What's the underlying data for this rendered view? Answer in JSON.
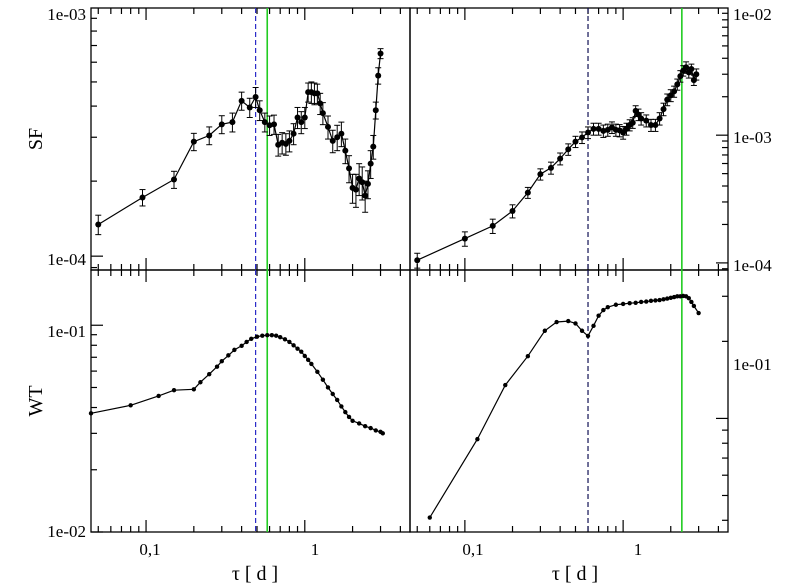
{
  "colors": {
    "data": "#000000",
    "vline_blue": "#2a2ac8",
    "vline_green": "#22cc22",
    "vline_dashed": "#111155"
  },
  "chart_data": [
    {
      "id": "sf-left",
      "type": "scatter",
      "log_x": true,
      "log_y": true,
      "xlim": [
        0.045,
        4.6
      ],
      "ylim": [
        8.8e-05,
        0.00099
      ],
      "ylabel": "SF",
      "xlabel": "",
      "y_ticklabels": [
        "1e-04",
        "1e-03"
      ],
      "x_ticklabels": [],
      "vlines": [
        {
          "x": 0.49,
          "color": "blue",
          "style": "dash"
        },
        {
          "x": 0.58,
          "color": "green",
          "style": "solid"
        }
      ],
      "x": [
        0.05,
        0.095,
        0.15,
        0.2,
        0.25,
        0.3,
        0.35,
        0.4,
        0.45,
        0.49,
        0.52,
        0.56,
        0.6,
        0.64,
        0.68,
        0.72,
        0.76,
        0.8,
        0.85,
        0.9,
        0.95,
        1.0,
        1.05,
        1.1,
        1.15,
        1.2,
        1.25,
        1.3,
        1.4,
        1.5,
        1.6,
        1.7,
        1.8,
        1.9,
        2.0,
        2.1,
        2.2,
        2.3,
        2.4,
        2.5,
        2.6,
        2.7,
        2.8,
        2.9,
        3.0
      ],
      "y": [
        0.000134,
        0.000172,
        0.000203,
        0.000288,
        0.000305,
        0.000338,
        0.000345,
        0.00042,
        0.000395,
        0.000435,
        0.000385,
        0.000345,
        0.000335,
        0.000338,
        0.00028,
        0.000285,
        0.000282,
        0.00029,
        0.00031,
        0.00036,
        0.000345,
        0.00036,
        0.000455,
        0.000455,
        0.00045,
        0.00045,
        0.00041,
        0.000375,
        0.00033,
        0.00029,
        0.0003,
        0.00031,
        0.000265,
        0.000225,
        0.000188,
        0.000185,
        0.000205,
        0.000198,
        0.000175,
        0.000195,
        0.000235,
        0.000275,
        0.000385,
        0.00053,
        0.00065
      ],
      "yerr": [
        1.2e-05,
        1.3e-05,
        1.6e-05,
        2.3e-05,
        2.5e-05,
        2.8e-05,
        3e-05,
        3.5e-05,
        3.5e-05,
        4e-05,
        3.5e-05,
        3e-05,
        3e-05,
        3e-05,
        2.8e-05,
        2.8e-05,
        2.8e-05,
        2.8e-05,
        3e-05,
        3.5e-05,
        3.5e-05,
        3.5e-05,
        4e-05,
        4.5e-05,
        4.5e-05,
        4e-05,
        4e-05,
        3.8e-05,
        3.5e-05,
        3e-05,
        3.5e-05,
        3.5e-05,
        3e-05,
        2.8e-05,
        2.5e-05,
        2.8e-05,
        3e-05,
        3e-05,
        2.5e-05,
        2.5e-05,
        3e-05,
        3e-05,
        3e-05,
        4e-05,
        3e-05
      ]
    },
    {
      "id": "sf-right",
      "type": "scatter",
      "log_x": true,
      "log_y": true,
      "xlim": [
        0.045,
        4.6
      ],
      "ylim": [
        8.8e-05,
        0.0099
      ],
      "ylabel": "",
      "xlabel": "",
      "y_ticklabels": [
        "1e-04",
        "1e-03",
        "1e-02"
      ],
      "x_ticklabels": [],
      "vlines": [
        {
          "x": 0.6,
          "color": "dark",
          "style": "dash"
        },
        {
          "x": 2.35,
          "color": "green",
          "style": "solid"
        }
      ],
      "x": [
        0.05,
        0.1,
        0.15,
        0.2,
        0.25,
        0.3,
        0.35,
        0.4,
        0.45,
        0.5,
        0.55,
        0.6,
        0.65,
        0.7,
        0.75,
        0.8,
        0.85,
        0.9,
        0.95,
        1.0,
        1.05,
        1.1,
        1.15,
        1.2,
        1.25,
        1.3,
        1.4,
        1.5,
        1.6,
        1.7,
        1.8,
        1.9,
        2.0,
        2.1,
        2.2,
        2.3,
        2.4,
        2.5,
        2.6,
        2.7,
        2.8,
        2.9
      ],
      "y": [
        0.000105,
        0.000155,
        0.000195,
        0.000255,
        0.000355,
        0.000495,
        0.000555,
        0.000655,
        0.000775,
        0.00089,
        0.00096,
        0.00105,
        0.00112,
        0.00112,
        0.00108,
        0.0011,
        0.00115,
        0.0011,
        0.00109,
        0.00105,
        0.00112,
        0.0012,
        0.00125,
        0.00155,
        0.00145,
        0.00135,
        0.0013,
        0.0012,
        0.0012,
        0.00135,
        0.0016,
        0.0019,
        0.00205,
        0.0022,
        0.0025,
        0.0029,
        0.0032,
        0.0034,
        0.0031,
        0.0033,
        0.0027,
        0.003
      ],
      "yerr": [
        1.4e-05,
        2e-05,
        2.5e-05,
        3e-05,
        3.5e-05,
        5e-05,
        6e-05,
        7e-05,
        8e-05,
        9e-05,
        0.0001,
        0.00011,
        0.00012,
        0.00012,
        0.00012,
        0.00012,
        0.00012,
        0.00012,
        0.00012,
        0.00012,
        0.00012,
        0.00012,
        0.00012,
        0.00015,
        0.00015,
        0.00015,
        0.00014,
        0.00013,
        0.00013,
        0.00015,
        0.00018,
        0.0002,
        0.00022,
        0.00022,
        0.00025,
        0.0003,
        0.0003,
        0.00035,
        0.0003,
        0.0003,
        0.00025,
        0.0003
      ]
    },
    {
      "id": "wt-left",
      "type": "line",
      "log_x": true,
      "log_y": true,
      "xlim": [
        0.045,
        4.6
      ],
      "ylim": [
        0.01,
        0.185
      ],
      "ylabel": "WT",
      "xlabel": "τ [ d ]",
      "y_ticklabels": [
        "1e-02",
        "1e-01"
      ],
      "x_ticklabels": [
        "0,1",
        "1"
      ],
      "vlines": [
        {
          "x": 0.49,
          "color": "blue",
          "style": "dash"
        },
        {
          "x": 0.58,
          "color": "green",
          "style": "solid"
        }
      ],
      "x": [
        0.045,
        0.08,
        0.12,
        0.15,
        0.2,
        0.22,
        0.25,
        0.28,
        0.3,
        0.33,
        0.36,
        0.4,
        0.43,
        0.46,
        0.5,
        0.54,
        0.58,
        0.62,
        0.66,
        0.7,
        0.75,
        0.8,
        0.85,
        0.9,
        0.95,
        1.0,
        1.05,
        1.1,
        1.2,
        1.3,
        1.4,
        1.5,
        1.6,
        1.7,
        1.8,
        1.9,
        2.0,
        2.2,
        2.4,
        2.6,
        2.8,
        3.0,
        3.1
      ],
      "y": [
        0.0375,
        0.041,
        0.0455,
        0.0485,
        0.049,
        0.053,
        0.058,
        0.063,
        0.067,
        0.0715,
        0.076,
        0.0795,
        0.083,
        0.086,
        0.088,
        0.089,
        0.0895,
        0.0895,
        0.089,
        0.0875,
        0.0855,
        0.083,
        0.08,
        0.077,
        0.0745,
        0.071,
        0.068,
        0.065,
        0.0595,
        0.0545,
        0.05,
        0.0465,
        0.0435,
        0.0405,
        0.038,
        0.036,
        0.0345,
        0.0335,
        0.0325,
        0.0318,
        0.031,
        0.0305,
        0.03
      ]
    },
    {
      "id": "wt-right",
      "type": "line",
      "log_x": true,
      "log_y": true,
      "xlim": [
        0.045,
        4.6
      ],
      "ylim": [
        0.036,
        0.38
      ],
      "ylabel": "",
      "xlabel": "τ [ d ]",
      "y_ticklabels": [
        "1e-01"
      ],
      "x_ticklabels": [
        "0,1",
        "1"
      ],
      "vlines": [
        {
          "x": 0.6,
          "color": "dark",
          "style": "dash"
        },
        {
          "x": 2.35,
          "color": "green",
          "style": "solid"
        }
      ],
      "x": [
        0.06,
        0.12,
        0.18,
        0.25,
        0.32,
        0.38,
        0.45,
        0.5,
        0.55,
        0.6,
        0.65,
        0.7,
        0.75,
        0.8,
        0.9,
        1.0,
        1.1,
        1.2,
        1.3,
        1.4,
        1.5,
        1.6,
        1.7,
        1.8,
        1.9,
        2.0,
        2.1,
        2.2,
        2.3,
        2.4,
        2.5,
        2.6,
        2.7,
        2.8,
        3.0
      ],
      "y": [
        0.041,
        0.083,
        0.135,
        0.175,
        0.22,
        0.238,
        0.24,
        0.235,
        0.22,
        0.21,
        0.23,
        0.252,
        0.265,
        0.272,
        0.278,
        0.28,
        0.282,
        0.283,
        0.285,
        0.286,
        0.288,
        0.289,
        0.29,
        0.292,
        0.294,
        0.296,
        0.298,
        0.3,
        0.3,
        0.301,
        0.3,
        0.295,
        0.285,
        0.275,
        0.258
      ]
    }
  ]
}
